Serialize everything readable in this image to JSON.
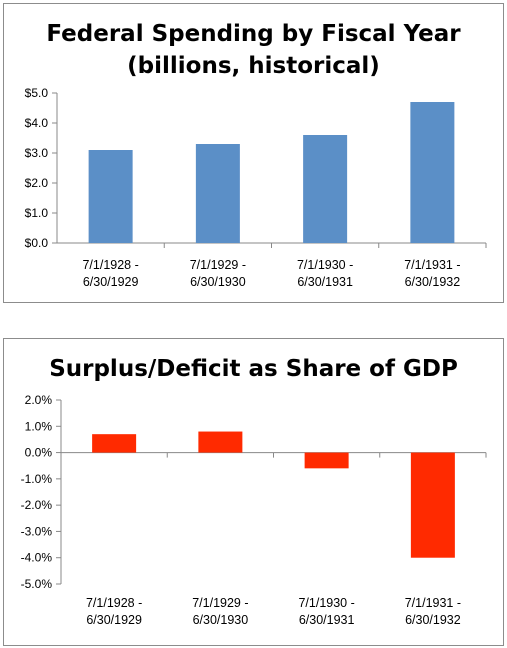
{
  "chart_data": [
    {
      "type": "bar",
      "title": "Federal Spending by Fiscal Year",
      "subtitle": "(billions, historical)",
      "categories": [
        [
          "7/1/1928 -",
          "6/30/1929"
        ],
        [
          "7/1/1929 -",
          "6/30/1930"
        ],
        [
          "7/1/1930 -",
          "6/30/1931"
        ],
        [
          "7/1/1931 -",
          "6/30/1932"
        ]
      ],
      "values": [
        3.1,
        3.3,
        3.6,
        4.7
      ],
      "ylim": [
        0,
        5
      ],
      "yticks": [
        "$0.0",
        "$1.0",
        "$2.0",
        "$3.0",
        "$4.0",
        "$5.0"
      ],
      "xlabel": "",
      "ylabel": "",
      "grid": false,
      "color": "#5b8fc7"
    },
    {
      "type": "bar",
      "title": "Surplus/Deficit as Share of GDP",
      "categories": [
        [
          "7/1/1928 -",
          "6/30/1929"
        ],
        [
          "7/1/1929 -",
          "6/30/1930"
        ],
        [
          "7/1/1930 -",
          "6/30/1931"
        ],
        [
          "7/1/1931 -",
          "6/30/1932"
        ]
      ],
      "values": [
        0.7,
        0.8,
        -0.6,
        -4.0
      ],
      "ylim": [
        -5,
        2
      ],
      "yticks": [
        "-5.0%",
        "-4.0%",
        "-3.0%",
        "-2.0%",
        "-1.0%",
        "0.0%",
        "1.0%",
        "2.0%"
      ],
      "xlabel": "",
      "ylabel": "",
      "grid": false,
      "color": "#ff2a00"
    }
  ]
}
